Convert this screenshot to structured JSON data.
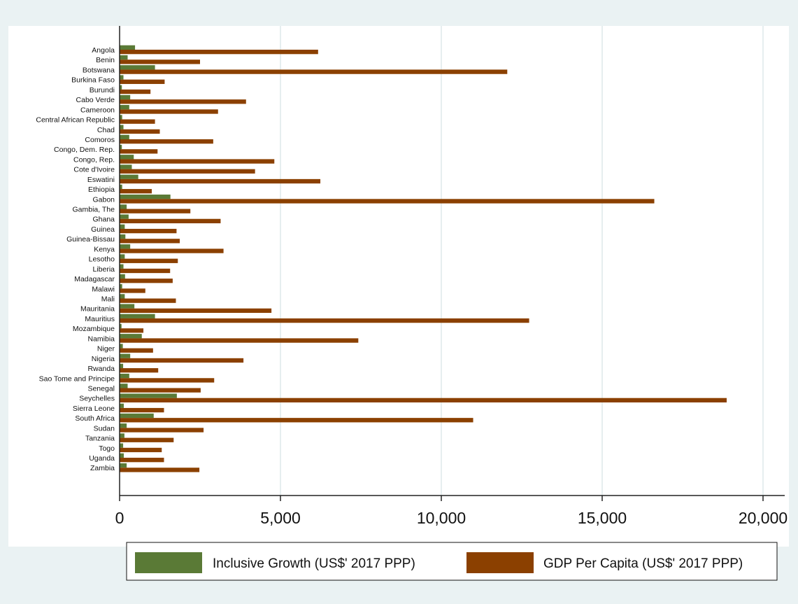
{
  "chart_data": {
    "type": "bar",
    "orientation": "horizontal",
    "categories": [
      "Angola",
      "Benin",
      "Botswana",
      "Burkina Faso",
      "Burundi",
      "Cabo Verde",
      "Cameroon",
      "Central African Republic",
      "Chad",
      "Comoros",
      "Congo, Dem. Rep.",
      "Congo, Rep.",
      "Cote d'Ivoire",
      "Eswatini",
      "Ethiopia",
      "Gabon",
      "Gambia, The",
      "Ghana",
      "Guinea",
      "Guinea-Bissau",
      "Kenya",
      "Lesotho",
      "Liberia",
      "Madagascar",
      "Malawi",
      "Mali",
      "Mauritania",
      "Mauritius",
      "Mozambique",
      "Namibia",
      "Niger",
      "Nigeria",
      "Rwanda",
      "Sao Tome and Principe",
      "Senegal",
      "Seychelles",
      "Sierra Leone",
      "South Africa",
      "Sudan",
      "Tanzania",
      "Togo",
      "Uganda",
      "Zambia"
    ],
    "series": [
      {
        "name": "Inclusive Growth (US$' 2017 PPP)",
        "color": "#5a7a36",
        "values": [
          480,
          250,
          1100,
          120,
          70,
          330,
          300,
          80,
          120,
          300,
          70,
          440,
          380,
          580,
          80,
          1580,
          220,
          280,
          160,
          180,
          330,
          160,
          120,
          170,
          80,
          160,
          460,
          1100,
          60,
          690,
          100,
          330,
          110,
          300,
          250,
          1780,
          130,
          1060,
          220,
          150,
          110,
          130,
          220
        ]
      },
      {
        "name": "GDP Per Capita (US$' 2017 PPP)",
        "color": "#8b4000",
        "values": [
          6170,
          2500,
          12050,
          1400,
          960,
          3930,
          3060,
          1100,
          1250,
          2910,
          1180,
          4810,
          4210,
          6240,
          1000,
          16620,
          2200,
          3140,
          1770,
          1870,
          3230,
          1810,
          1570,
          1650,
          800,
          1750,
          4720,
          12730,
          740,
          7420,
          1040,
          3850,
          1200,
          2940,
          2520,
          18870,
          1380,
          10990,
          2610,
          1680,
          1310,
          1380,
          2480
        ]
      }
    ],
    "x_ticks": [
      0,
      5000,
      10000,
      15000,
      20000
    ],
    "x_tick_labels": [
      "0",
      "5,000",
      "10,000",
      "15,000",
      "20,000"
    ],
    "xlim": [
      0,
      20600
    ],
    "grid": true,
    "legend_position": "bottom",
    "background": "#eaf2f3",
    "plot_background": "#ffffff"
  }
}
